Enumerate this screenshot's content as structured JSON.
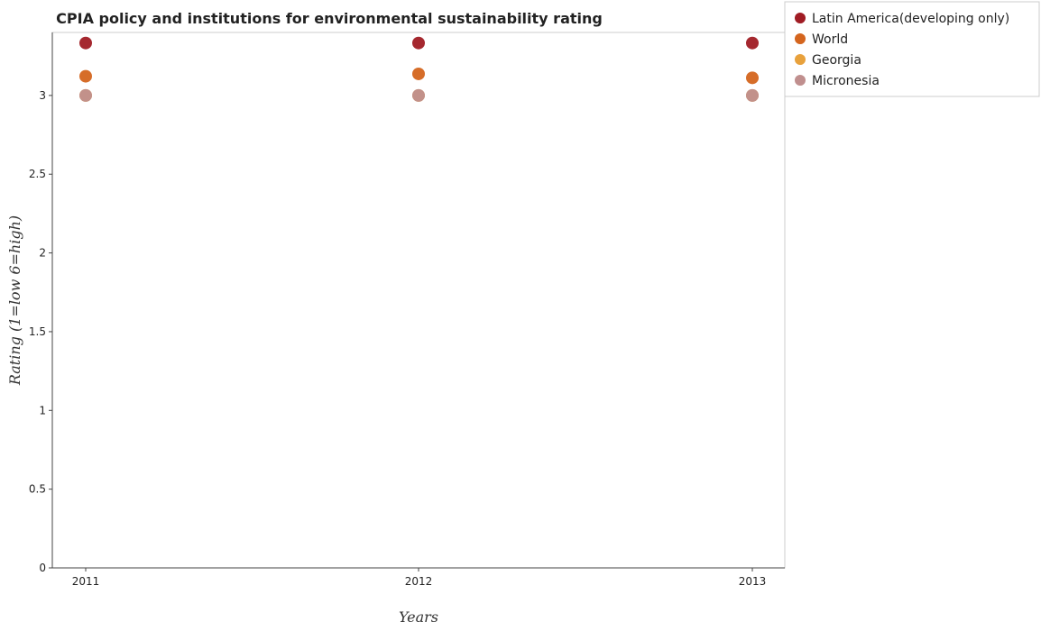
{
  "chart_data": {
    "type": "scatter",
    "title": "CPIA policy and institutions for environmental sustainability rating",
    "xlabel": "Years",
    "ylabel": "Rating (1=low 6=high)",
    "x": [
      "2011",
      "2012",
      "2013"
    ],
    "ylim": [
      0,
      3.4
    ],
    "yticks": [
      "0",
      "0.5",
      "1",
      "1.5",
      "2",
      "2.5",
      "3"
    ],
    "ytick_values": [
      0,
      0.5,
      1,
      1.5,
      2,
      2.5,
      3
    ],
    "grid": false,
    "legend_position": "top-right",
    "series": [
      {
        "name": "Latin America(developing only)",
        "color": "#a01c24",
        "values": [
          3.333,
          3.333,
          3.333
        ]
      },
      {
        "name": "World",
        "color": "#d4651e",
        "values": [
          3.122,
          3.137,
          3.112
        ]
      },
      {
        "name": "Georgia",
        "color": "#e8a13c",
        "values": [
          3.0,
          3.0,
          3.0
        ]
      },
      {
        "name": "Micronesia",
        "color": "#c08f8e",
        "values": [
          3.0,
          3.0,
          3.0
        ]
      }
    ]
  }
}
